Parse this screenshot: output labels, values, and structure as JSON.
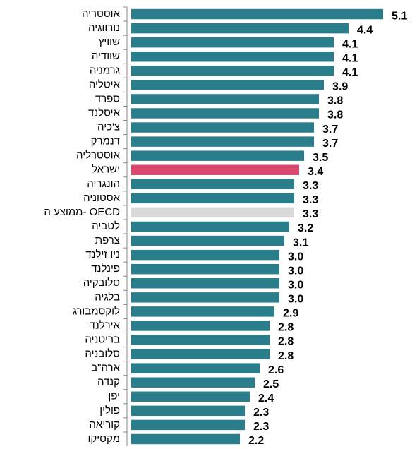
{
  "chart_data": {
    "type": "barh",
    "categories": [
      "אוסטריה",
      "נורווגיה",
      "שוויץ",
      "שוודיה",
      "גרמניה",
      "איטליה",
      "ספרד",
      "איסלנד",
      "צ'כיה",
      "דנמרק",
      "אוסטרליה",
      "ישראל",
      "הונגריה",
      "אסטוניה",
      "ממוצע ה- OECD",
      "לטביה",
      "צרפת",
      "ניו זילנד",
      "פינלנד",
      "סלובקיה",
      "בלגיה",
      "לוקסמבורג",
      "אירלנד",
      "בריטניה",
      "סלובניה",
      "ארה\"ב",
      "קנדה",
      "יפן",
      "פולין",
      "קוריאה",
      "מקסיקו"
    ],
    "values": [
      5.1,
      4.4,
      4.1,
      4.1,
      4.1,
      3.9,
      3.8,
      3.8,
      3.7,
      3.7,
      3.5,
      3.4,
      3.3,
      3.3,
      3.3,
      3.2,
      3.1,
      3.0,
      3.0,
      3.0,
      3.0,
      2.9,
      2.8,
      2.8,
      2.8,
      2.6,
      2.5,
      2.4,
      2.3,
      2.3,
      2.2
    ],
    "value_labels": [
      "5.1",
      "4.4",
      "4.1",
      "4.1",
      "4.1",
      "3.9",
      "3.8",
      "3.8",
      "3.7",
      "3.7",
      "3.5",
      "3.4",
      "3.3",
      "3.3",
      "3.3",
      "3.2",
      "3.1",
      "3.0",
      "3.0",
      "3.0",
      "3.0",
      "2.9",
      "2.8",
      "2.8",
      "2.8",
      "2.6",
      "2.5",
      "2.4",
      "2.3",
      "2.3",
      "2.2"
    ],
    "colors": [
      "#2a7d8b",
      "#2a7d8b",
      "#2a7d8b",
      "#2a7d8b",
      "#2a7d8b",
      "#2a7d8b",
      "#2a7d8b",
      "#2a7d8b",
      "#2a7d8b",
      "#2a7d8b",
      "#2a7d8b",
      "#d9486f",
      "#2a7d8b",
      "#2a7d8b",
      "#d9d9d9",
      "#2a7d8b",
      "#2a7d8b",
      "#2a7d8b",
      "#2a7d8b",
      "#2a7d8b",
      "#2a7d8b",
      "#2a7d8b",
      "#2a7d8b",
      "#2a7d8b",
      "#2a7d8b",
      "#2a7d8b",
      "#2a7d8b",
      "#2a7d8b",
      "#2a7d8b",
      "#2a7d8b",
      "#2a7d8b"
    ],
    "xlim": [
      0,
      5.5
    ]
  }
}
